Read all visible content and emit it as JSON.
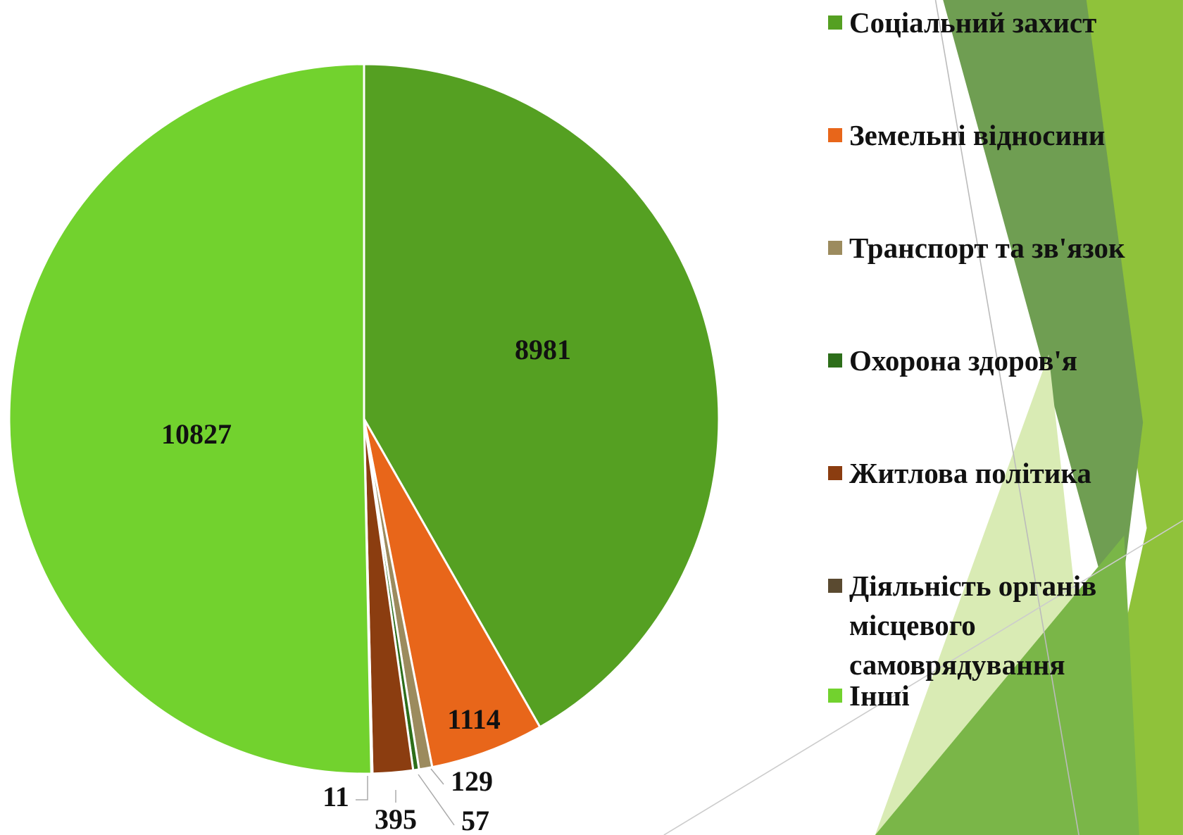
{
  "chart_data": {
    "type": "pie",
    "categories": [
      "Соціальний захист",
      "Земельні відносини",
      "Транспорт та зв'язок",
      "Охорона здоров'я",
      "Житлова політика",
      "Діяльність органів місцевого самоврядування",
      "Інші"
    ],
    "values": [
      8981,
      1114,
      129,
      57,
      395,
      11,
      10827
    ],
    "colors": [
      "#55a022",
      "#e8661a",
      "#9c8b5e",
      "#2d6e1a",
      "#8b3d10",
      "#5a4a30",
      "#72d22e"
    ],
    "legend": "right"
  }
}
